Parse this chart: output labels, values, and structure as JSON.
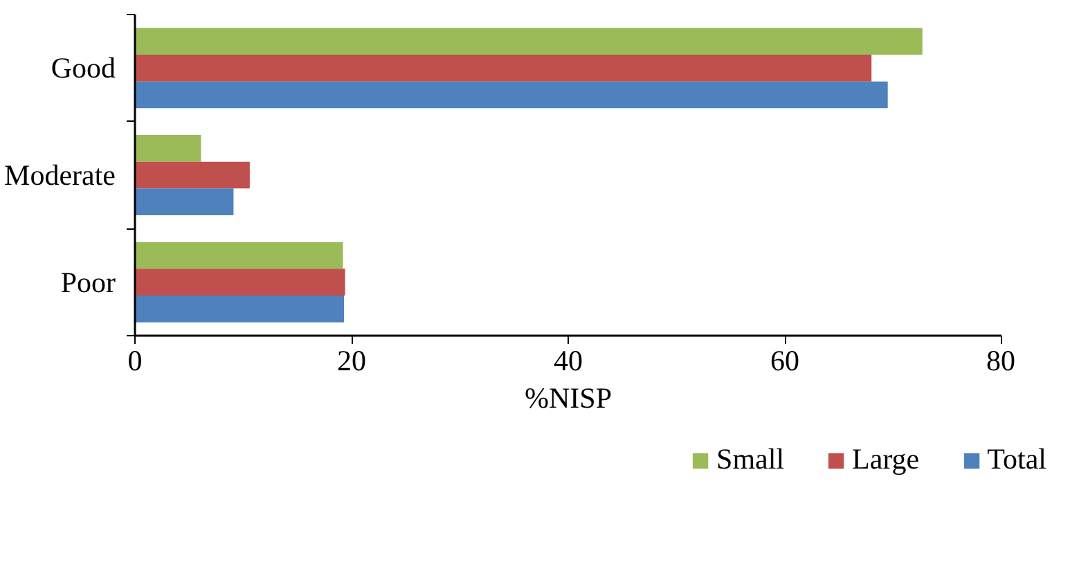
{
  "chart_data": {
    "type": "bar",
    "orientation": "horizontal",
    "xlabel": "%NISP",
    "categories": [
      "Good",
      "Moderate",
      "Poor"
    ],
    "series": [
      {
        "name": "Small",
        "color": "#9bbb59",
        "values": [
          72.7,
          6.1,
          19.2
        ]
      },
      {
        "name": "Large",
        "color": "#c0504d",
        "values": [
          68.0,
          10.6,
          19.4
        ]
      },
      {
        "name": "Total",
        "color": "#4f81bd",
        "values": [
          69.5,
          9.1,
          19.3
        ]
      }
    ],
    "xlim": [
      0,
      80
    ],
    "xticks": [
      0,
      20,
      40,
      60,
      80
    ],
    "grid": false,
    "legend": "bottom"
  }
}
